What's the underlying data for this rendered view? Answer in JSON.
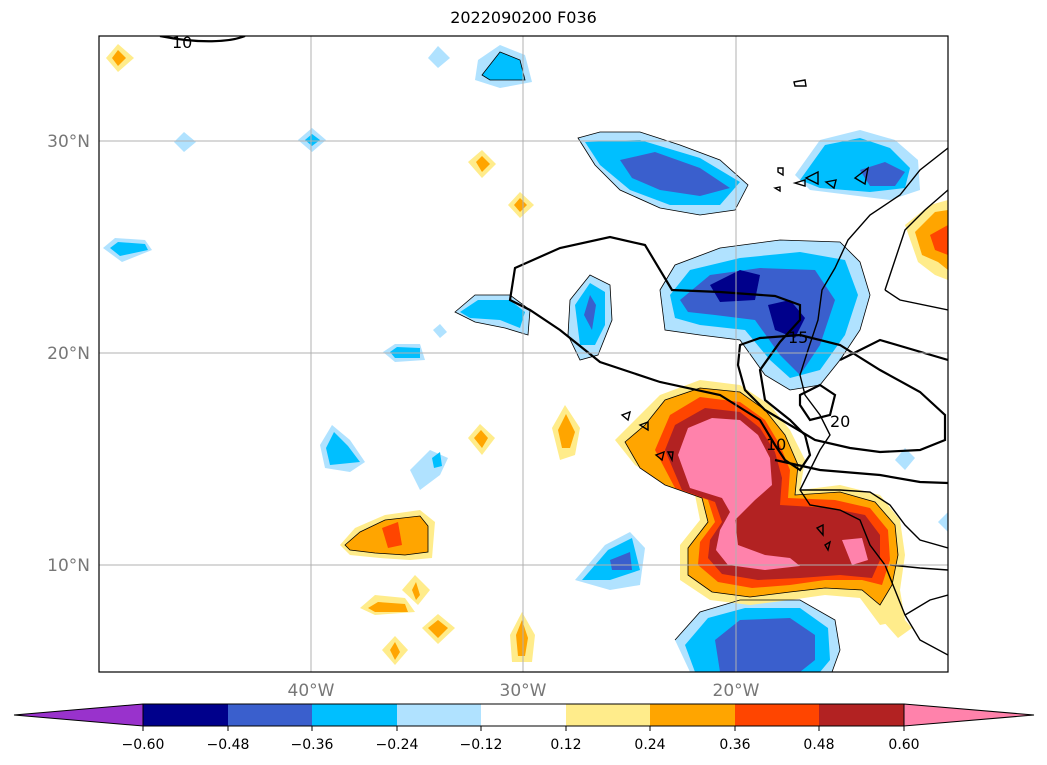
{
  "title": "2022090200 F036",
  "lat_labels": [
    "30°N",
    "20°N",
    "10°N"
  ],
  "lon_labels": [
    "40°W",
    "30°W",
    "20°W"
  ],
  "contour_labels": [
    "10",
    "15",
    "20",
    "10"
  ],
  "colorbar": {
    "ticks": [
      "−0.60",
      "−0.48",
      "−0.36",
      "−0.24",
      "−0.12",
      "0.12",
      "0.24",
      "0.36",
      "0.48",
      "0.60"
    ],
    "colors": [
      "#9932cc",
      "#00008b",
      "#3a5fcd",
      "#00bfff",
      "#b0e2ff",
      "#ffffff",
      "#ffec8b",
      "#ffa500",
      "#ff4500",
      "#b22222",
      "#ff82ab"
    ]
  }
}
